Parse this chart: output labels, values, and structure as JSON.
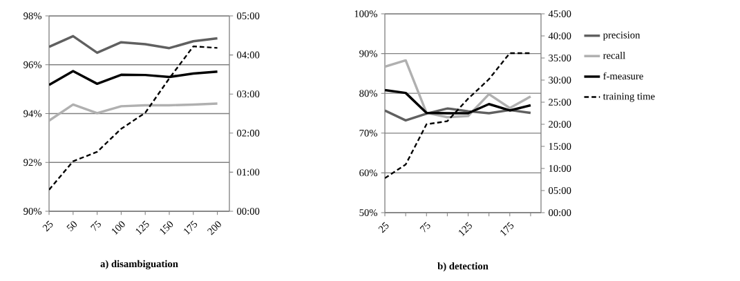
{
  "chart_data": [
    {
      "type": "line",
      "title": "a) disambiguation",
      "categories": [
        "25",
        "50",
        "75",
        "100",
        "125",
        "150",
        "175",
        "200"
      ],
      "series": [
        {
          "color": "#606060",
          "line_style": "solid",
          "values": [
            96.73,
            97.17,
            96.49,
            96.92,
            96.84,
            96.68,
            96.96,
            97.08
          ]
        },
        {
          "color": "#b0b0b0",
          "line_style": "solid",
          "values": [
            93.71,
            94.37,
            94.02,
            94.3,
            94.34,
            94.34,
            94.37,
            94.41
          ]
        },
        {
          "color": "#000000",
          "line_style": "solid",
          "values": [
            95.17,
            95.74,
            95.22,
            95.59,
            95.58,
            95.5,
            95.64,
            95.72
          ]
        },
        {
          "color": "#000000",
          "line_style": "dashed",
          "axis": "y2",
          "values": [
            0.55,
            1.28,
            1.52,
            2.11,
            2.52,
            3.4,
            4.22,
            4.18
          ]
        }
      ],
      "ylim": [
        90,
        98
      ],
      "yticks": [
        {
          "value": 90,
          "label": "90%"
        },
        {
          "value": 92,
          "label": "92%"
        },
        {
          "value": 94,
          "label": "94%"
        },
        {
          "value": 96,
          "label": "96%"
        },
        {
          "value": 98,
          "label": "98%"
        }
      ],
      "y2lim": [
        0,
        5
      ],
      "y2ticks": [
        {
          "value": 0,
          "label": "00:00"
        },
        {
          "value": 1,
          "label": "01:00"
        },
        {
          "value": 2,
          "label": "02:00"
        },
        {
          "value": 3,
          "label": "03:00"
        },
        {
          "value": 4,
          "label": "04:00"
        },
        {
          "value": 5,
          "label": "05:00"
        }
      ],
      "grid": "y",
      "legend": false
    },
    {
      "type": "line",
      "title": "b) detection",
      "categories": [
        "25",
        null,
        "75",
        null,
        "125",
        null,
        "175",
        null
      ],
      "series": [
        {
          "name": "precision",
          "color": "#606060",
          "line_style": "solid",
          "values": [
            75.7,
            73.2,
            74.9,
            76.2,
            75.5,
            75.0,
            75.8,
            75.1
          ]
        },
        {
          "name": "recall",
          "color": "#b0b0b0",
          "line_style": "solid",
          "values": [
            86.7,
            88.3,
            75.1,
            74.0,
            74.3,
            79.8,
            76.3,
            79.2
          ]
        },
        {
          "name": "f-measure",
          "color": "#000000",
          "line_style": "solid",
          "values": [
            80.8,
            80.1,
            75.1,
            75.0,
            75.0,
            77.3,
            75.7,
            77.0
          ]
        },
        {
          "name": "training time",
          "color": "#000000",
          "line_style": "dashed",
          "axis": "y2",
          "values": [
            7.8,
            10.9,
            20.0,
            20.7,
            25.8,
            30.2,
            36.1,
            36.1
          ]
        }
      ],
      "ylim": [
        50,
        100
      ],
      "yticks": [
        {
          "value": 50,
          "label": "50%"
        },
        {
          "value": 60,
          "label": "60%"
        },
        {
          "value": 70,
          "label": "70%"
        },
        {
          "value": 80,
          "label": "80%"
        },
        {
          "value": 90,
          "label": "90%"
        },
        {
          "value": 100,
          "label": "100%"
        }
      ],
      "y2lim": [
        0,
        45
      ],
      "y2ticks": [
        {
          "value": 0,
          "label": "00:00"
        },
        {
          "value": 5,
          "label": "05:00"
        },
        {
          "value": 10,
          "label": "10:00"
        },
        {
          "value": 15,
          "label": "15:00"
        },
        {
          "value": 20,
          "label": "20:00"
        },
        {
          "value": 25,
          "label": "25:00"
        },
        {
          "value": 30,
          "label": "30:00"
        },
        {
          "value": 35,
          "label": "35:00"
        },
        {
          "value": 40,
          "label": "40:00"
        },
        {
          "value": 45,
          "label": "45:00"
        }
      ],
      "grid": "y",
      "legend": "right"
    }
  ]
}
